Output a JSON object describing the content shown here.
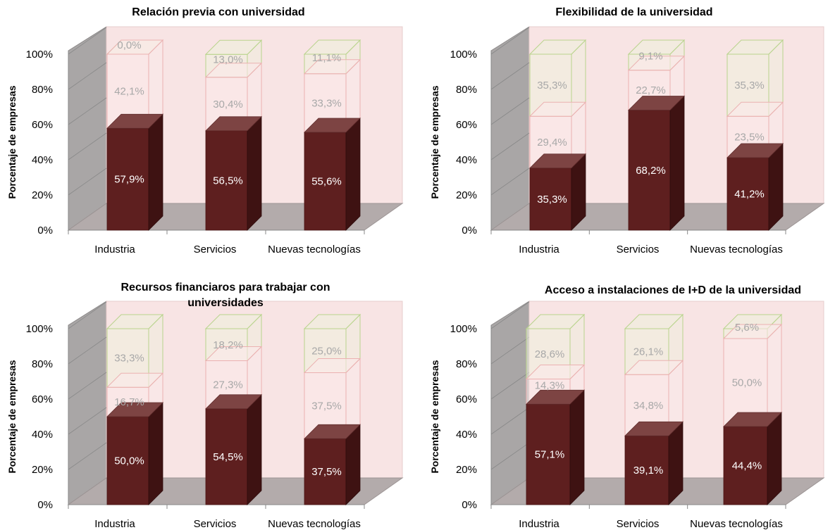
{
  "colors": {
    "dark_front": "#5e1f1f",
    "dark_side": "#3e1212",
    "dark_top": "#7d4443",
    "wall_back": "#f8e4e4",
    "wall_side": "#a9a6a6",
    "floor": "#b3abab",
    "pink_edge": "#ebb1b1",
    "green_edge": "#b9d38c",
    "green_fill": "#eef0dc",
    "pink_fill": "#fbeaea"
  },
  "chart_data": [
    {
      "type": "bar",
      "stacked": true,
      "three_d": true,
      "title": "Relación previa con universidad",
      "ylabel": "Porcentaje de empresas",
      "yticks": [
        "0%",
        "20%",
        "40%",
        "60%",
        "80%",
        "100%"
      ],
      "ylim": [
        0,
        100
      ],
      "categories": [
        "Industria",
        "Servicios",
        "Nuevas tecnologías"
      ],
      "series": [
        {
          "values": [
            57.9,
            56.5,
            55.6
          ],
          "labels": [
            "57,9%",
            "56,5%",
            "55,6%"
          ]
        },
        {
          "values": [
            42.1,
            30.4,
            33.3
          ],
          "labels": [
            "42,1%",
            "30,4%",
            "33,3%"
          ]
        },
        {
          "values": [
            0.0,
            13.0,
            11.1
          ],
          "labels": [
            "0,0%",
            "13,0%",
            "11,1%"
          ]
        }
      ]
    },
    {
      "type": "bar",
      "stacked": true,
      "three_d": true,
      "title": "Flexibilidad de la universidad",
      "ylabel": "Porcentaje de empresas",
      "yticks": [
        "0%",
        "20%",
        "40%",
        "60%",
        "80%",
        "100%"
      ],
      "ylim": [
        0,
        100
      ],
      "categories": [
        "Industria",
        "Servicios",
        "Nuevas tecnologías"
      ],
      "series": [
        {
          "values": [
            35.3,
            68.2,
            41.2
          ],
          "labels": [
            "35,3%",
            "68,2%",
            "41,2%"
          ]
        },
        {
          "values": [
            29.4,
            22.7,
            23.5
          ],
          "labels": [
            "29,4%",
            "22,7%",
            "23,5%"
          ]
        },
        {
          "values": [
            35.3,
            9.1,
            35.3
          ],
          "labels": [
            "35,3%",
            "9,1%",
            "35,3%"
          ]
        }
      ]
    },
    {
      "type": "bar",
      "stacked": true,
      "three_d": true,
      "title": "Recursos financiaros para trabajar con universidades",
      "title_lines": [
        "Recursos financiaros para trabajar con",
        "universidades"
      ],
      "ylabel": "Porcentaje de empresas",
      "yticks": [
        "0%",
        "20%",
        "40%",
        "60%",
        "80%",
        "100%"
      ],
      "ylim": [
        0,
        100
      ],
      "categories": [
        "Industria",
        "Servicios",
        "Nuevas tecnologías"
      ],
      "series": [
        {
          "values": [
            50.0,
            54.5,
            37.5
          ],
          "labels": [
            "50,0%",
            "54,5%",
            "37,5%"
          ]
        },
        {
          "values": [
            16.7,
            27.3,
            37.5
          ],
          "labels": [
            "16,7%",
            "27,3%",
            "37,5%"
          ]
        },
        {
          "values": [
            33.3,
            18.2,
            25.0
          ],
          "labels": [
            "33,3%",
            "18,2%",
            "25,0%"
          ]
        }
      ]
    },
    {
      "type": "bar",
      "stacked": true,
      "three_d": true,
      "title": "Acceso a instalaciones de I+D de la universidad",
      "ylabel": "Porcentaje de empresas",
      "yticks": [
        "0%",
        "20%",
        "40%",
        "60%",
        "80%",
        "100%"
      ],
      "ylim": [
        0,
        100
      ],
      "categories": [
        "Industria",
        "Servicios",
        "Nuevas tecnologías"
      ],
      "series": [
        {
          "values": [
            57.1,
            39.1,
            44.4
          ],
          "labels": [
            "57,1%",
            "39,1%",
            "44,4%"
          ]
        },
        {
          "values": [
            14.3,
            34.8,
            50.0
          ],
          "labels": [
            "14,3%",
            "34,8%",
            "50,0%"
          ]
        },
        {
          "values": [
            28.6,
            26.1,
            5.6
          ],
          "labels": [
            "28,6%",
            "26,1%",
            "5,6%"
          ]
        }
      ]
    }
  ]
}
